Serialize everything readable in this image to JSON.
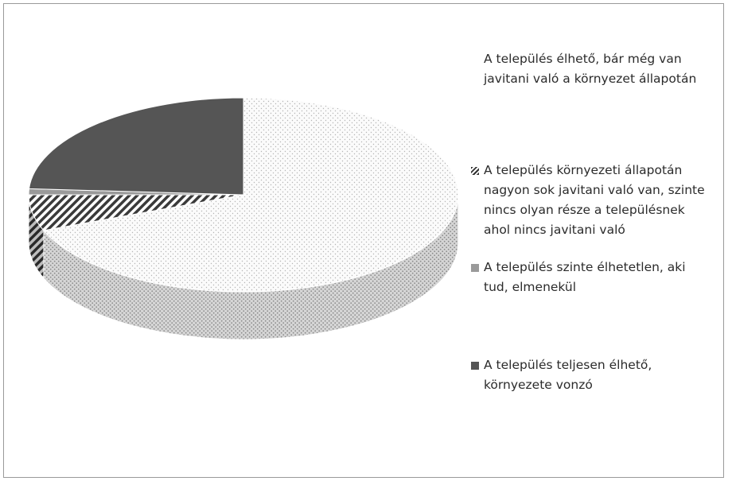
{
  "chart_data": {
    "type": "pie",
    "title": "",
    "categories": [
      "A település élhető, bár még van javitani való a környezet állapotán",
      "A település környezeti állapotán nagyon sok javitani való van, szinte nincs olyan része a településnek ahol nincs javitani való",
      "A település szinte élhetetlen, aki tud, elmenekül",
      "A település teljesen élhető, környezete vonzó"
    ],
    "values": [
      69,
      6,
      1,
      24
    ],
    "legend_position": "right",
    "style": "3d",
    "colors": [
      "#ffffff",
      "#333333",
      "#9a9a9a",
      "#555555"
    ]
  }
}
